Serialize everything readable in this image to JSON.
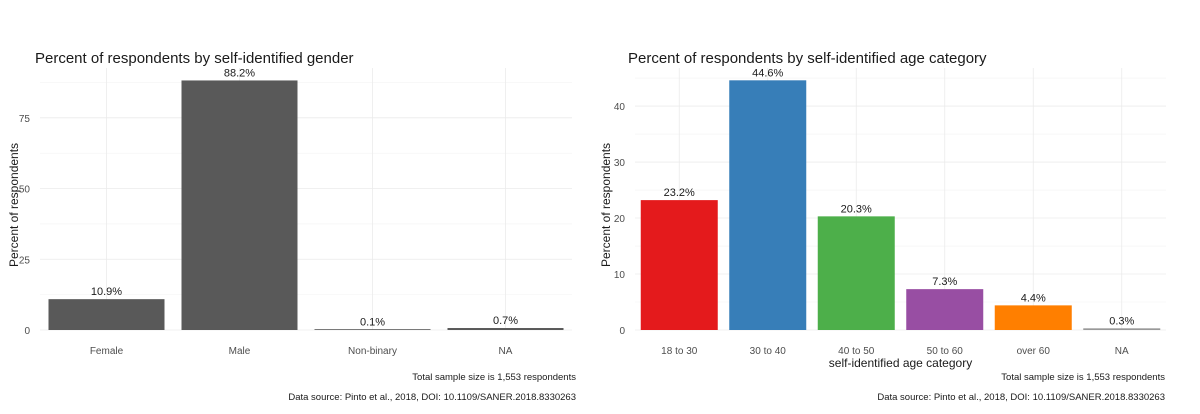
{
  "chart_data": [
    {
      "type": "bar",
      "title": "Percent of respondents by self-identified gender",
      "xlabel": "",
      "ylabel": "Percent of respondents",
      "categories": [
        "Female",
        "Male",
        "Non-binary",
        "NA"
      ],
      "values": [
        10.9,
        88.2,
        0.1,
        0.7
      ],
      "data_labels": [
        "10.9%",
        "88.2%",
        "0.1%",
        "0.7%"
      ],
      "bar_colors": [
        "#595959",
        "#595959",
        "#595959",
        "#595959"
      ],
      "yticks": [
        0,
        25,
        50,
        75
      ],
      "ylim": [
        0,
        92.6
      ],
      "grid": true,
      "caption": [
        "Total sample size is 1,553 respondents",
        "Data source: Pinto et al., 2018, DOI: 10.1109/SANER.2018.8330263"
      ]
    },
    {
      "type": "bar",
      "title": "Percent of respondents by self-identified age category",
      "xlabel": "self-identified age category",
      "ylabel": "Percent of respondents",
      "categories": [
        "18 to 30",
        "30 to 40",
        "40 to 50",
        "50 to 60",
        "over 60",
        "NA"
      ],
      "values": [
        23.2,
        44.6,
        20.3,
        7.3,
        4.4,
        0.3
      ],
      "data_labels": [
        "23.2%",
        "44.6%",
        "20.3%",
        "7.3%",
        "4.4%",
        "0.3%"
      ],
      "bar_colors": [
        "#E41A1C",
        "#377EB8",
        "#4DAF4A",
        "#984EA3",
        "#FF7F00",
        "#999999"
      ],
      "yticks": [
        0,
        10,
        20,
        30,
        40
      ],
      "ylim": [
        0,
        46.8
      ],
      "grid": true,
      "caption": [
        "Total sample size is 1,553 respondents",
        "Data source: Pinto et al., 2018, DOI: 10.1109/SANER.2018.8330263"
      ]
    }
  ]
}
